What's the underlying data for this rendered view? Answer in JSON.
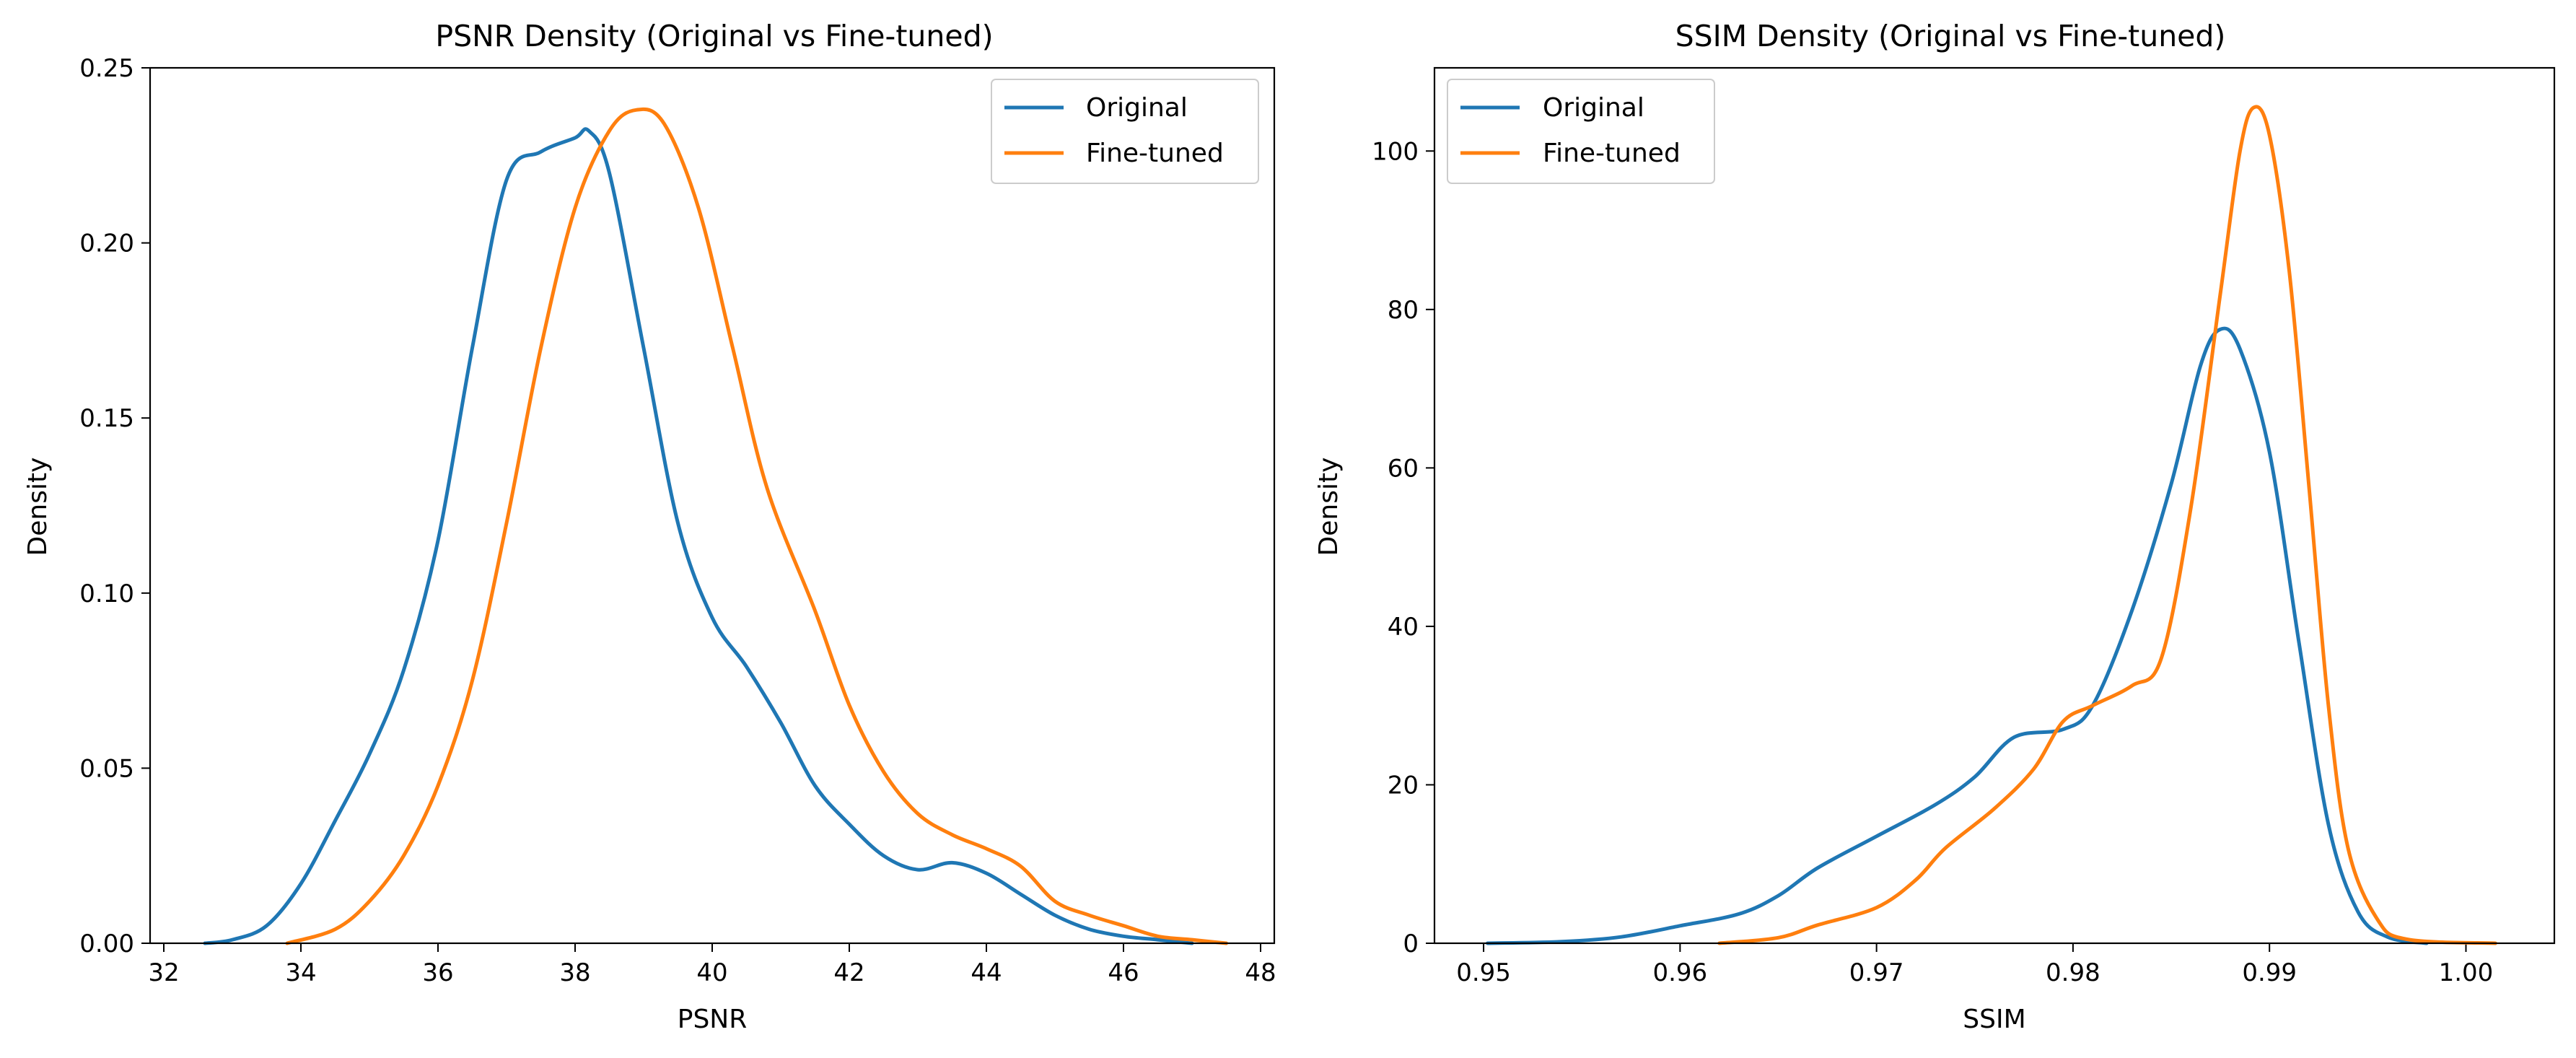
{
  "chart_data": [
    {
      "type": "line",
      "title": "PSNR Density (Original vs Fine-tuned)",
      "xlabel": "PSNR",
      "ylabel": "Density",
      "xlim": [
        31.8,
        48.2
      ],
      "ylim": [
        0,
        0.25
      ],
      "xticks": [
        32,
        34,
        36,
        38,
        40,
        42,
        44,
        46,
        48
      ],
      "xtick_labels": [
        "32",
        "34",
        "36",
        "38",
        "40",
        "42",
        "44",
        "46",
        "48"
      ],
      "yticks": [
        0,
        0.05,
        0.1,
        0.15,
        0.2,
        0.25
      ],
      "ytick_labels": [
        "0.00",
        "0.05",
        "0.10",
        "0.15",
        "0.20",
        "0.25"
      ],
      "grid": false,
      "legend_position": "upper right",
      "series": [
        {
          "name": "Original",
          "color": "#1f77b4",
          "points": [
            [
              32.6,
              0
            ],
            [
              33,
              0.001
            ],
            [
              33.5,
              0.005
            ],
            [
              34,
              0.017
            ],
            [
              34.5,
              0.035
            ],
            [
              35,
              0.054
            ],
            [
              35.5,
              0.078
            ],
            [
              36,
              0.115
            ],
            [
              36.5,
              0.17
            ],
            [
              37,
              0.218
            ],
            [
              37.5,
              0.226
            ],
            [
              38,
              0.23
            ],
            [
              38.2,
              0.232
            ],
            [
              38.5,
              0.22
            ],
            [
              39,
              0.17
            ],
            [
              39.5,
              0.12
            ],
            [
              40,
              0.093
            ],
            [
              40.5,
              0.079
            ],
            [
              41,
              0.063
            ],
            [
              41.5,
              0.045
            ],
            [
              42,
              0.034
            ],
            [
              42.5,
              0.025
            ],
            [
              43,
              0.021
            ],
            [
              43.5,
              0.023
            ],
            [
              44,
              0.02
            ],
            [
              44.5,
              0.014
            ],
            [
              45,
              0.008
            ],
            [
              45.5,
              0.004
            ],
            [
              46,
              0.002
            ],
            [
              46.5,
              0.001
            ],
            [
              47,
              0
            ]
          ]
        },
        {
          "name": "Fine-tuned",
          "color": "#ff7f0e",
          "points": [
            [
              33.8,
              0
            ],
            [
              34.5,
              0.004
            ],
            [
              35,
              0.012
            ],
            [
              35.5,
              0.025
            ],
            [
              36,
              0.045
            ],
            [
              36.5,
              0.075
            ],
            [
              37,
              0.12
            ],
            [
              37.5,
              0.17
            ],
            [
              38,
              0.21
            ],
            [
              38.5,
              0.232
            ],
            [
              38.9,
              0.238
            ],
            [
              39.3,
              0.234
            ],
            [
              39.8,
              0.21
            ],
            [
              40.3,
              0.17
            ],
            [
              40.8,
              0.13
            ],
            [
              41.5,
              0.095
            ],
            [
              42,
              0.068
            ],
            [
              42.5,
              0.049
            ],
            [
              43,
              0.037
            ],
            [
              43.5,
              0.031
            ],
            [
              44,
              0.027
            ],
            [
              44.5,
              0.022
            ],
            [
              45,
              0.012
            ],
            [
              45.5,
              0.008
            ],
            [
              46,
              0.005
            ],
            [
              46.5,
              0.002
            ],
            [
              47,
              0.001
            ],
            [
              47.5,
              0
            ]
          ]
        }
      ]
    },
    {
      "type": "line",
      "title": "SSIM Density (Original vs Fine-tuned)",
      "xlabel": "SSIM",
      "ylabel": "Density",
      "xlim": [
        0.9475,
        1.0045
      ],
      "ylim": [
        0,
        110.5
      ],
      "xticks": [
        0.95,
        0.96,
        0.97,
        0.98,
        0.99,
        1.0
      ],
      "xtick_labels": [
        "0.95",
        "0.96",
        "0.97",
        "0.98",
        "0.99",
        "1.00"
      ],
      "yticks": [
        0,
        20,
        40,
        60,
        80,
        100
      ],
      "ytick_labels": [
        "0",
        "20",
        "40",
        "60",
        "80",
        "100"
      ],
      "grid": false,
      "legend_position": "upper left",
      "series": [
        {
          "name": "Original",
          "color": "#1f77b4",
          "points": [
            [
              0.9502,
              0
            ],
            [
              0.954,
              0.2
            ],
            [
              0.957,
              0.8
            ],
            [
              0.96,
              2.2
            ],
            [
              0.963,
              3.7
            ],
            [
              0.965,
              6
            ],
            [
              0.967,
              9.5
            ],
            [
              0.97,
              13.5
            ],
            [
              0.973,
              17.5
            ],
            [
              0.975,
              21
            ],
            [
              0.977,
              26
            ],
            [
              0.9795,
              27
            ],
            [
              0.981,
              30
            ],
            [
              0.983,
              42
            ],
            [
              0.985,
              58
            ],
            [
              0.9865,
              73
            ],
            [
              0.9875,
              77.5
            ],
            [
              0.9885,
              75
            ],
            [
              0.99,
              62
            ],
            [
              0.9915,
              38
            ],
            [
              0.993,
              15
            ],
            [
              0.9945,
              4
            ],
            [
              0.996,
              0.8
            ],
            [
              0.998,
              0
            ]
          ]
        },
        {
          "name": "Fine-tuned",
          "color": "#ff7f0e",
          "points": [
            [
              0.962,
              0
            ],
            [
              0.965,
              0.7
            ],
            [
              0.967,
              2.3
            ],
            [
              0.97,
              4.5
            ],
            [
              0.972,
              8
            ],
            [
              0.9735,
              12
            ],
            [
              0.976,
              17
            ],
            [
              0.978,
              22
            ],
            [
              0.9795,
              28
            ],
            [
              0.981,
              30
            ],
            [
              0.983,
              32.5
            ],
            [
              0.9845,
              36
            ],
            [
              0.986,
              55
            ],
            [
              0.9875,
              82
            ],
            [
              0.9885,
              100
            ],
            [
              0.9892,
              105.5
            ],
            [
              0.99,
              102
            ],
            [
              0.991,
              85
            ],
            [
              0.992,
              58
            ],
            [
              0.993,
              30
            ],
            [
              0.994,
              12
            ],
            [
              0.9955,
              3
            ],
            [
              0.997,
              0.5
            ],
            [
              1.0015,
              0
            ]
          ]
        }
      ]
    }
  ]
}
